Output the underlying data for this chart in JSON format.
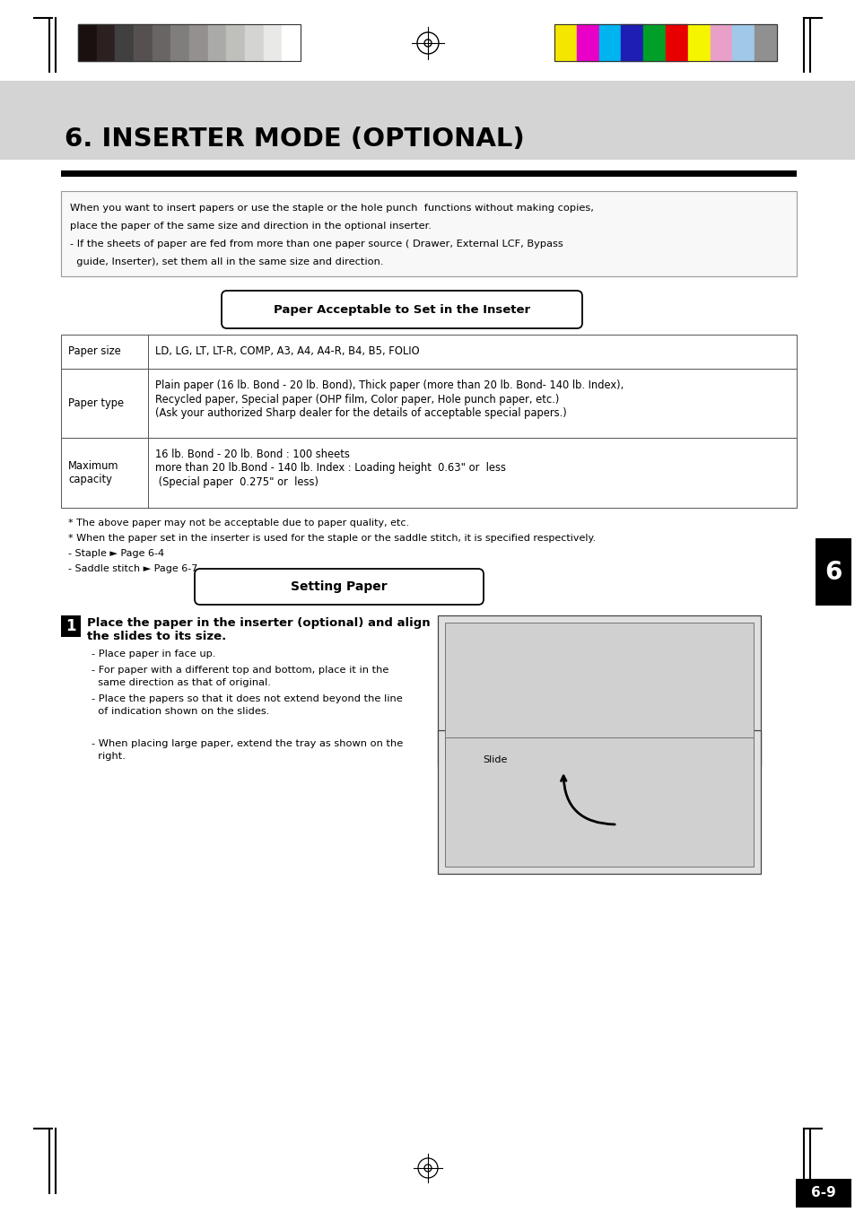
{
  "title": "6. INSERTER MODE (OPTIONAL)",
  "bg_color": "#ffffff",
  "page_number": "6-9",
  "tab_number": "6",
  "black_bar_colors": [
    "#1a1010",
    "#2d2020",
    "#404040",
    "#565050",
    "#6a6565",
    "#807d7d",
    "#959090",
    "#aaaaa8",
    "#bfbfbc",
    "#d4d4d2",
    "#e9e9e8",
    "#ffffff"
  ],
  "color_bar_colors": [
    "#f5e600",
    "#e800c8",
    "#00b4f0",
    "#1e1eb4",
    "#00a028",
    "#e80000",
    "#f5f500",
    "#e8a0c8",
    "#a0c8e8",
    "#909090"
  ],
  "intro_box_text_line1": "When you want to insert papers or use the staple or the hole punch  functions without making copies,",
  "intro_box_text_line2": "place the paper of the same size and direction in the optional inserter.",
  "intro_box_text_line3": "- If the sheets of paper are fed from more than one paper source ( Drawer, External LCF, Bypass",
  "intro_box_text_line4": "  guide, Inserter), set them all in the same size and direction.",
  "section_header": "Paper Acceptable to Set in the Inseter",
  "table_rows": [
    {
      "label": "Paper size",
      "content_lines": [
        "LD, LG, LT, LT-R, COMP, A3, A4, A4-R, B4, B5, FOLIO"
      ]
    },
    {
      "label": "Paper type",
      "content_lines": [
        "Plain paper (16 lb. Bond - 20 lb. Bond), Thick paper (more than 20 lb. Bond- 140 lb. Index),",
        "Recycled paper, Special paper (OHP film, Color paper, Hole punch paper, etc.)",
        "(Ask your authorized Sharp dealer for the details of acceptable special papers.)"
      ]
    },
    {
      "label": "Maximum\ncapacity",
      "content_lines": [
        "16 lb. Bond - 20 lb. Bond : 100 sheets",
        "more than 20 lb.Bond - 140 lb. Index : Loading height  0.63\" or  less",
        " (Special paper  0.275\" or  less)"
      ]
    }
  ],
  "footnotes": [
    "* The above paper may not be acceptable due to paper quality, etc.",
    "* When the paper set in the inserter is used for the staple or the saddle stitch, it is specified respectively.",
    "- Staple ► Page 6-4",
    "- Saddle stitch ► Page 6-7"
  ],
  "setting_paper_header": "Setting Paper",
  "step1_bold_line1": "Place the paper in the inserter (optional) and align",
  "step1_bold_line2": "the slides to its size.",
  "step1_bullets": [
    "- Place paper in face up.",
    "- For paper with a different top and bottom, place it in the\n  same direction as that of original.",
    "- Place the papers so that it does not extend beyond the line\n  of indication shown on the slides."
  ],
  "slide_label": "Slide",
  "step2_text_line1": "- When placing large paper, extend the tray as shown on the",
  "step2_text_line2": "  right."
}
